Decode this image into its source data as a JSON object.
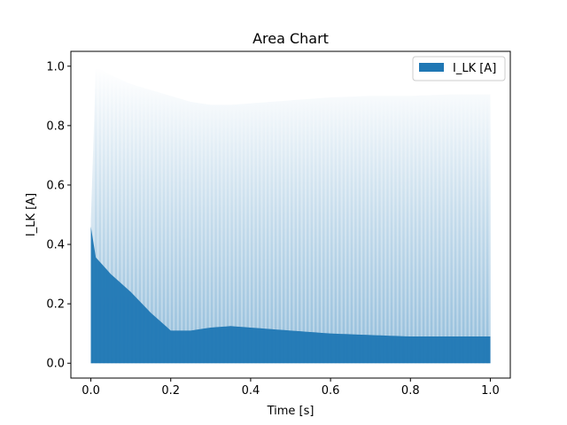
{
  "chart_data": {
    "type": "area",
    "title": "Area Chart",
    "xlabel": "Time [s]",
    "ylabel": "I_LK [A]",
    "xlim": [
      -0.05,
      1.05
    ],
    "ylim": [
      -0.05,
      1.05
    ],
    "xticks": [
      0.0,
      0.2,
      0.4,
      0.6,
      0.8,
      1.0
    ],
    "xtick_labels": [
      "0.0",
      "0.2",
      "0.4",
      "0.6",
      "0.8",
      "1.0"
    ],
    "yticks": [
      0.0,
      0.2,
      0.4,
      0.6,
      0.8,
      1.0
    ],
    "ytick_labels": [
      "0.0",
      "0.2",
      "0.4",
      "0.6",
      "0.8",
      "1.0"
    ],
    "grid": false,
    "legend_position": "top-right",
    "series": [
      {
        "name": "I_LK [A]",
        "color": "#1f77b4",
        "upper_envelope": {
          "x": [
            0.0,
            0.01,
            0.05,
            0.1,
            0.15,
            0.2,
            0.25,
            0.3,
            0.35,
            0.4,
            0.5,
            0.6,
            0.7,
            0.8,
            0.9,
            1.0
          ],
          "y": [
            0.48,
            1.0,
            0.97,
            0.94,
            0.92,
            0.9,
            0.88,
            0.87,
            0.87,
            0.875,
            0.885,
            0.895,
            0.9,
            0.9,
            0.905,
            0.905
          ]
        },
        "lower_envelope": {
          "x": [
            0.0,
            0.01,
            0.05,
            0.1,
            0.15,
            0.2,
            0.25,
            0.3,
            0.35,
            0.4,
            0.5,
            0.6,
            0.7,
            0.8,
            0.9,
            1.0
          ],
          "y": [
            0.46,
            0.36,
            0.3,
            0.24,
            0.17,
            0.11,
            0.11,
            0.12,
            0.125,
            0.12,
            0.11,
            0.1,
            0.095,
            0.09,
            0.09,
            0.09
          ]
        }
      }
    ]
  }
}
